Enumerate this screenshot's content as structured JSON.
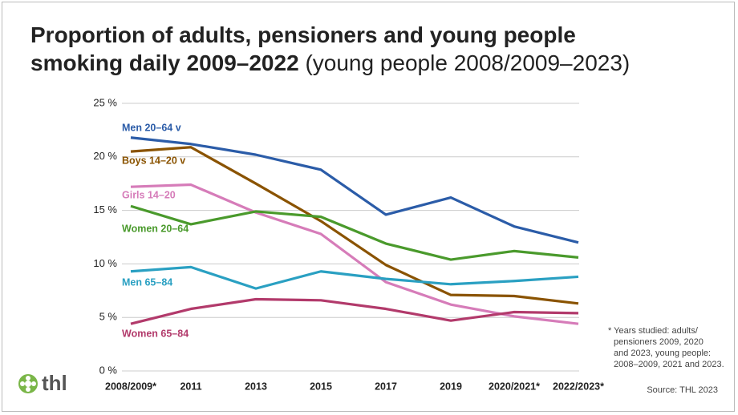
{
  "chart_data": {
    "type": "line",
    "title": "Proportion of adults, pensioners and young people smoking daily 2009–2022",
    "subtitle": "(young people 2008/2009–2023)",
    "categories": [
      "2008/2009*",
      "2011",
      "2013",
      "2015",
      "2017",
      "2019",
      "2020/2021*",
      "2022/2023*"
    ],
    "series": [
      {
        "name": "Men 20–64 v",
        "color": "#2b5ca8",
        "values": [
          21.8,
          21.2,
          20.2,
          18.8,
          14.6,
          16.2,
          13.5,
          12.0
        ]
      },
      {
        "name": "Boys 14–20 v",
        "color": "#8a5300",
        "values": [
          20.5,
          20.9,
          17.5,
          14.0,
          9.9,
          7.1,
          7.0,
          6.3
        ]
      },
      {
        "name": "Girls 14–20",
        "color": "#d67cb9",
        "values": [
          17.2,
          17.4,
          14.8,
          12.8,
          8.3,
          6.2,
          5.1,
          4.4
        ]
      },
      {
        "name": "Women 20–64",
        "color": "#4a9a2c",
        "values": [
          15.4,
          13.7,
          14.9,
          14.4,
          11.9,
          10.4,
          11.2,
          10.6
        ]
      },
      {
        "name": "Men 65–84",
        "color": "#2aa0c2",
        "values": [
          9.3,
          9.7,
          7.7,
          9.3,
          8.6,
          8.1,
          8.4,
          8.8
        ]
      },
      {
        "name": "Women 65–84",
        "color": "#b23a6b",
        "values": [
          4.4,
          5.8,
          6.7,
          6.6,
          5.8,
          4.7,
          5.5,
          5.4
        ]
      }
    ],
    "ylim": [
      0,
      25
    ],
    "yticks": [
      {
        "value": 0,
        "label": "0 %"
      },
      {
        "value": 5,
        "label": "5 %"
      },
      {
        "value": 10,
        "label": "10 %"
      },
      {
        "value": 15,
        "label": "15 %"
      },
      {
        "value": 20,
        "label": "20 %"
      },
      {
        "value": 25,
        "label": "25 %"
      }
    ],
    "grid": true,
    "note": [
      "* Years studied: adults/",
      "pensioners 2009, 2020",
      "and 2023, young people:",
      "2008–2009, 2021 and 2023."
    ],
    "source": "Source: THL 2023",
    "logo": "thl"
  }
}
